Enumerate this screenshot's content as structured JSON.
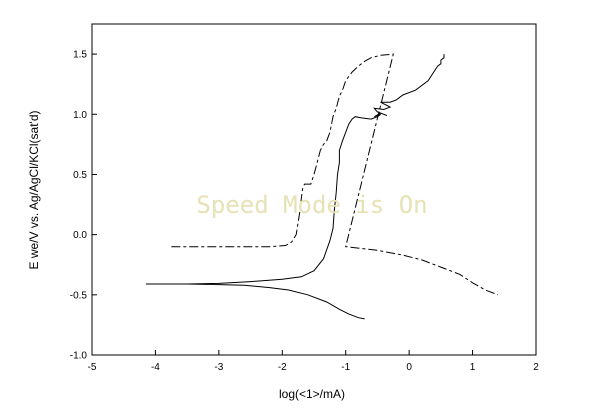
{
  "watermark": "Speed Mode is On",
  "chart_data": {
    "type": "line",
    "title": "",
    "xlabel": "log(<1>/mA)",
    "ylabel": "E we/V vs. Ag/AgCl/KCl(sat'd)",
    "xlim": [
      -5,
      2
    ],
    "ylim": [
      -1.0,
      1.75
    ],
    "xticks": [
      "-5",
      "-4",
      "-3",
      "-2",
      "-1",
      "0",
      "1",
      "2"
    ],
    "yticks": [
      "-1.0",
      "-0.5",
      "0.0",
      "0.5",
      "1.0",
      "1.5"
    ],
    "grid": false,
    "series": [
      {
        "style": "solid",
        "x": [
          -0.7,
          -0.8,
          -0.95,
          -1.1,
          -1.3,
          -1.6,
          -1.9,
          -2.2,
          -2.6,
          -3.0,
          -3.5,
          -4.15,
          -3.5,
          -3.0,
          -2.5,
          -2.0,
          -1.7,
          -1.5,
          -1.35,
          -1.25,
          -1.2,
          -1.18,
          -1.15,
          -1.13,
          -1.1,
          -1.1,
          -1.05,
          -1.0,
          -0.95,
          -0.9,
          -0.85,
          -0.75,
          -0.6,
          -0.5,
          -0.45,
          -0.55,
          -0.45,
          -0.35,
          -0.5,
          -0.55,
          -0.4,
          -0.3,
          -0.45,
          -0.3,
          -0.2,
          -0.1,
          0.1,
          0.3,
          0.4,
          0.45,
          0.5,
          0.5,
          0.55,
          0.55
        ],
        "y": [
          -0.7,
          -0.69,
          -0.66,
          -0.62,
          -0.56,
          -0.5,
          -0.46,
          -0.44,
          -0.42,
          -0.415,
          -0.41,
          -0.41,
          -0.41,
          -0.405,
          -0.39,
          -0.37,
          -0.35,
          -0.3,
          -0.2,
          -0.05,
          0.05,
          0.2,
          0.35,
          0.5,
          0.6,
          0.7,
          0.78,
          0.85,
          0.92,
          0.96,
          0.98,
          0.97,
          0.96,
          0.98,
          1.0,
          0.98,
          1.01,
          0.99,
          1.02,
          1.05,
          1.04,
          1.06,
          1.1,
          1.1,
          1.12,
          1.16,
          1.2,
          1.28,
          1.36,
          1.4,
          1.42,
          1.45,
          1.47,
          1.5
        ]
      },
      {
        "style": "dashed",
        "x": [
          -3.75,
          -3.4,
          -3.0,
          -2.6,
          -2.2,
          -1.95,
          -1.85,
          -1.78,
          -1.75,
          -1.72,
          -1.7,
          -1.68,
          -1.65,
          -1.55,
          -1.5,
          -1.45,
          -1.4,
          -1.35,
          -1.3,
          -1.25,
          -1.2,
          -1.15,
          -1.1,
          -1.05,
          -1.0,
          -0.9,
          -0.8,
          -0.7,
          -0.6,
          -0.45,
          -0.25,
          -1.0,
          -0.5,
          -0.1,
          0.2,
          0.5,
          0.8,
          1.0,
          1.2,
          1.4
        ],
        "y": [
          -0.1,
          -0.1,
          -0.1,
          -0.1,
          -0.1,
          -0.09,
          -0.06,
          0.0,
          0.1,
          0.2,
          0.3,
          0.38,
          0.42,
          0.42,
          0.5,
          0.6,
          0.7,
          0.75,
          0.78,
          0.85,
          0.98,
          1.05,
          1.15,
          1.2,
          1.28,
          1.35,
          1.4,
          1.44,
          1.47,
          1.49,
          1.5,
          -0.1,
          -0.13,
          -0.17,
          -0.21,
          -0.27,
          -0.33,
          -0.4,
          -0.46,
          -0.5
        ]
      }
    ]
  }
}
